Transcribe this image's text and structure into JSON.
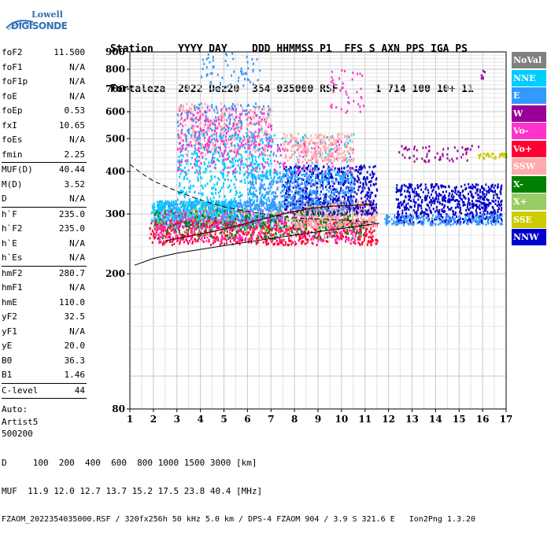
{
  "logo": {
    "line1": "Lowell",
    "line2": "DIGISONDE"
  },
  "header": {
    "row1": "Station    YYYY DAY    DDD HHMMSS P1  FFS S AXN PPS IGA PS",
    "row2": "Fortaleza  2022 Dez20  354 035000 RSF      1 714 100 10+ 11"
  },
  "params": [
    {
      "label": "foF2",
      "value": "11.500"
    },
    {
      "label": "foF1",
      "value": "N/A"
    },
    {
      "label": "foF1p",
      "value": "N/A"
    },
    {
      "label": "foE",
      "value": "N/A"
    },
    {
      "label": "foEp",
      "value": "0.53"
    },
    {
      "label": "fxI",
      "value": "10.65"
    },
    {
      "label": "foEs",
      "value": "N/A"
    },
    {
      "label": "fmin",
      "value": "2.25"
    },
    {
      "sep": true
    },
    {
      "label": "MUF(D)",
      "value": "40.44"
    },
    {
      "label": "M(D)",
      "value": "3.52"
    },
    {
      "label": "D",
      "value": "N/A"
    },
    {
      "sep": true
    },
    {
      "label": "h`F",
      "value": "235.0"
    },
    {
      "label": "h`F2",
      "value": "235.0"
    },
    {
      "label": "h`E",
      "value": "N/A"
    },
    {
      "label": "h`Es",
      "value": "N/A"
    },
    {
      "sep": true
    },
    {
      "label": "hmF2",
      "value": "280.7"
    },
    {
      "label": "hmF1",
      "value": "N/A"
    },
    {
      "label": "hmE",
      "value": "110.0"
    },
    {
      "label": "yF2",
      "value": "32.5"
    },
    {
      "label": "yF1",
      "value": "N/A"
    },
    {
      "label": "yE",
      "value": "20.0"
    },
    {
      "label": "B0",
      "value": "36.3"
    },
    {
      "label": "B1",
      "value": "1.46"
    },
    {
      "sep": true
    },
    {
      "label": "C-level",
      "value": "44"
    },
    {
      "sep": true
    }
  ],
  "auto": {
    "line1": "Auto:",
    "line2": "Artist5",
    "line3": "500200"
  },
  "legend": [
    {
      "label": "NoVal",
      "color": "#808080"
    },
    {
      "label": "NNE",
      "color": "#00ccff"
    },
    {
      "label": "E",
      "color": "#3399ff"
    },
    {
      "label": "W",
      "color": "#990099"
    },
    {
      "label": "Vo-",
      "color": "#ff33cc"
    },
    {
      "label": "Vo+",
      "color": "#ff0033"
    },
    {
      "label": "SSW",
      "color": "#ffaaaa"
    },
    {
      "label": "X-",
      "color": "#008000"
    },
    {
      "label": "X+",
      "color": "#99cc66"
    },
    {
      "label": "SSE",
      "color": "#cccc00"
    },
    {
      "label": "NNW",
      "color": "#0000cc"
    }
  ],
  "footer": {
    "line1": "D     100  200  400  600  800 1000 1500 3000 [km]",
    "line2": "MUF  11.9 12.0 12.7 13.7 15.2 17.5 23.8 40.4 [MHz]",
    "line3": "FZAOM_2022354035000.RSF / 320fx256h 50 kHz 5.0 km / DPS-4 FZAOM 904 / 3.9 S 321.6 E   Ion2Png 1.3.20"
  },
  "chart_data": {
    "type": "scatter",
    "title": "",
    "xlabel": "",
    "ylabel": "",
    "xlim": [
      1,
      17
    ],
    "ylim": [
      80,
      900
    ],
    "y_scale": "log",
    "x_ticks": [
      1,
      2,
      3,
      4,
      5,
      6,
      7,
      8,
      9,
      10,
      11,
      12,
      13,
      14,
      15,
      16,
      17
    ],
    "y_ticks": [
      80,
      200,
      300,
      400,
      500,
      600,
      700,
      800,
      900
    ],
    "grid": true,
    "legend_position": "right",
    "clusters": [
      {
        "series": "E",
        "x": [
          2.0,
          7.5
        ],
        "y": [
          275,
          330
        ],
        "count": 900
      },
      {
        "series": "NNE",
        "x": [
          1.9,
          5.5
        ],
        "y": [
          285,
          330
        ],
        "count": 350
      },
      {
        "series": "Vo+",
        "x": [
          1.8,
          11.5
        ],
        "y": [
          245,
          290
        ],
        "count": 700
      },
      {
        "series": "Vo-",
        "x": [
          2.0,
          11.0
        ],
        "y": [
          250,
          310
        ],
        "count": 450
      },
      {
        "series": "SSW",
        "x": [
          8.0,
          11.5
        ],
        "y": [
          275,
          330
        ],
        "count": 500
      },
      {
        "series": "NNW",
        "x": [
          7.5,
          11.5
        ],
        "y": [
          300,
          420
        ],
        "count": 600
      },
      {
        "series": "X-",
        "x": [
          2.0,
          11.0
        ],
        "y": [
          255,
          310
        ],
        "count": 250
      },
      {
        "series": "X+",
        "x": [
          2.0,
          10.0
        ],
        "y": [
          260,
          320
        ],
        "count": 150
      },
      {
        "series": "E",
        "x": [
          6.0,
          10.5
        ],
        "y": [
          310,
          400
        ],
        "count": 500
      },
      {
        "series": "NNE",
        "x": [
          3.0,
          7.0
        ],
        "y": [
          330,
          450
        ],
        "count": 250
      },
      {
        "series": "SSW",
        "x": [
          3.0,
          7.0
        ],
        "y": [
          450,
          640
        ],
        "count": 350
      },
      {
        "series": "E",
        "x": [
          3.0,
          7.0
        ],
        "y": [
          460,
          640
        ],
        "count": 200
      },
      {
        "series": "Vo-",
        "x": [
          3.0,
          7.0
        ],
        "y": [
          480,
          620
        ],
        "count": 150
      },
      {
        "series": "NNE",
        "x": [
          3.0,
          10.5
        ],
        "y": [
          380,
          520
        ],
        "count": 250
      },
      {
        "series": "Vo-",
        "x": [
          3.0,
          10.5
        ],
        "y": [
          400,
          500
        ],
        "count": 200
      },
      {
        "series": "SSW",
        "x": [
          7.5,
          10.5
        ],
        "y": [
          430,
          520
        ],
        "count": 250
      },
      {
        "series": "NNW",
        "x": [
          12.3,
          16.8
        ],
        "y": [
          285,
          370
        ],
        "count": 650
      },
      {
        "series": "E",
        "x": [
          11.8,
          16.8
        ],
        "y": [
          280,
          300
        ],
        "count": 200
      },
      {
        "series": "W",
        "x": [
          12.3,
          15.8
        ],
        "y": [
          430,
          480
        ],
        "count": 60
      },
      {
        "series": "SSE",
        "x": [
          15.8,
          17.0
        ],
        "y": [
          440,
          455
        ],
        "count": 40
      },
      {
        "series": "E",
        "x": [
          4.0,
          6.5
        ],
        "y": [
          700,
          900
        ],
        "count": 60
      },
      {
        "series": "Vo-",
        "x": [
          9.5,
          11.0
        ],
        "y": [
          600,
          800
        ],
        "count": 40
      },
      {
        "series": "W",
        "x": [
          15.9,
          16.1
        ],
        "y": [
          740,
          800
        ],
        "count": 6
      }
    ],
    "lines": [
      {
        "name": "",
        "style": "solid",
        "x": [
          1.2,
          2,
          3,
          4,
          5,
          6,
          7,
          8,
          9,
          10,
          11,
          11.6
        ],
        "y": [
          212,
          222,
          230,
          236,
          242,
          248,
          254,
          260,
          266,
          272,
          278,
          282
        ]
      },
      {
        "name": "",
        "style": "dashed",
        "x": [
          1.0,
          1.5,
          2.0,
          3.0,
          4.0,
          5.0,
          6.0,
          7.0,
          8.0,
          9.0,
          10.0,
          11.0,
          11.5
        ],
        "y": [
          420,
          395,
          375,
          350,
          330,
          315,
          305,
          298,
          292,
          290,
          288,
          285,
          283
        ]
      },
      {
        "name": "",
        "style": "profile",
        "x": [
          2.5,
          3.5,
          4.5,
          5.5,
          6.5,
          7.5,
          8.5,
          9.5,
          10.5,
          11.2
        ],
        "y": [
          250,
          258,
          266,
          276,
          288,
          300,
          310,
          316,
          318,
          320
        ]
      }
    ]
  }
}
